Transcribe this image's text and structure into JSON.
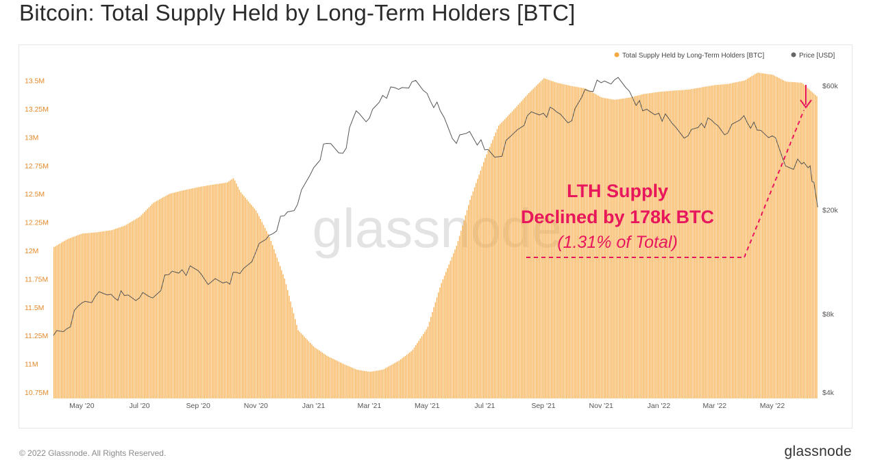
{
  "header": {
    "title": "Bitcoin: Total Supply Held by Long-Term Holders [BTC]"
  },
  "footer": {
    "copyright": "© 2022 Glassnode. All Rights Reserved.",
    "brand": "glassnode"
  },
  "watermark": "glassnode",
  "colors": {
    "supply": "#f6a942",
    "supply_fill": "#f8c27a",
    "price": "#555555",
    "annotation": "#e8175d",
    "left_axis": "#e3892a",
    "right_axis": "#555555"
  },
  "chart_data": {
    "type": "bar",
    "title": "Bitcoin: Total Supply Held by Long-Term Holders [BTC]",
    "x_ticks": [
      "May '20",
      "Jul '20",
      "Sep '20",
      "Nov '20",
      "Jan '21",
      "Mar '21",
      "May '21",
      "Jul '21",
      "Sep '21",
      "Nov '21",
      "Jan '22",
      "Mar '22",
      "May '22"
    ],
    "left_axis": {
      "ticks": [
        10.75,
        11,
        11.25,
        11.5,
        11.75,
        12,
        12.25,
        12.5,
        12.75,
        13,
        13.25,
        13.5
      ],
      "tick_labels": [
        "10.75M",
        "11M",
        "11.25M",
        "11.5M",
        "11.75M",
        "12M",
        "12.25M",
        "12.5M",
        "12.75M",
        "13M",
        "13.25M",
        "13.5M"
      ],
      "range": [
        10.72,
        13.57
      ]
    },
    "right_axis": {
      "scale": "log",
      "ticks": [
        4000,
        8000,
        20000,
        60000
      ],
      "tick_labels": [
        "$4k",
        "$8k",
        "$20k",
        "$60k"
      ]
    },
    "legend": {
      "position": "top-right",
      "items": [
        "Total Supply Held by Long-Term Holders [BTC]",
        "Price [USD]"
      ]
    },
    "series": [
      {
        "name": "Total Supply Held by Long-Term Holders [BTC]",
        "kind": "bar",
        "axis": "left",
        "x": [
          "2020-04-01",
          "2020-04-15",
          "2020-05-01",
          "2020-05-15",
          "2020-06-01",
          "2020-06-15",
          "2020-07-01",
          "2020-07-15",
          "2020-08-01",
          "2020-08-15",
          "2020-09-01",
          "2020-09-15",
          "2020-10-01",
          "2020-10-08",
          "2020-10-15",
          "2020-11-01",
          "2020-11-15",
          "2020-12-01",
          "2020-12-15",
          "2021-01-01",
          "2021-01-15",
          "2021-02-01",
          "2021-02-15",
          "2021-03-01",
          "2021-03-15",
          "2021-04-01",
          "2021-04-15",
          "2021-05-01",
          "2021-05-15",
          "2021-06-01",
          "2021-06-15",
          "2021-07-01",
          "2021-07-15",
          "2021-08-01",
          "2021-08-15",
          "2021-09-01",
          "2021-09-15",
          "2021-10-01",
          "2021-10-15",
          "2021-11-01",
          "2021-11-15",
          "2021-12-01",
          "2021-12-15",
          "2022-01-01",
          "2022-01-15",
          "2022-02-01",
          "2022-02-15",
          "2022-03-01",
          "2022-03-15",
          "2022-04-01",
          "2022-04-15",
          "2022-05-01",
          "2022-05-15",
          "2022-06-01",
          "2022-06-10",
          "2022-06-18"
        ],
        "values": [
          12.03,
          12.1,
          12.15,
          12.16,
          12.18,
          12.22,
          12.3,
          12.42,
          12.5,
          12.53,
          12.56,
          12.58,
          12.6,
          12.64,
          12.52,
          12.35,
          12.12,
          11.75,
          11.3,
          11.15,
          11.07,
          11,
          10.95,
          10.93,
          10.95,
          11.03,
          11.12,
          11.32,
          11.7,
          12.05,
          12.45,
          12.82,
          13.1,
          13.25,
          13.38,
          13.52,
          13.48,
          13.45,
          13.43,
          13.35,
          13.33,
          13.35,
          13.38,
          13.4,
          13.41,
          13.42,
          13.44,
          13.46,
          13.47,
          13.5,
          13.57,
          13.55,
          13.49,
          13.48,
          13.41,
          13.35
        ]
      },
      {
        "name": "Price [USD]",
        "kind": "line",
        "axis": "right",
        "x": [
          "2020-04-01",
          "2020-04-15",
          "2020-05-01",
          "2020-05-15",
          "2020-06-01",
          "2020-06-15",
          "2020-07-01",
          "2020-07-15",
          "2020-08-01",
          "2020-08-15",
          "2020-09-01",
          "2020-09-15",
          "2020-10-01",
          "2020-10-15",
          "2020-11-01",
          "2020-11-15",
          "2020-12-01",
          "2020-12-15",
          "2021-01-01",
          "2021-01-15",
          "2021-02-01",
          "2021-02-15",
          "2021-03-01",
          "2021-03-15",
          "2021-04-01",
          "2021-04-15",
          "2021-05-01",
          "2021-05-15",
          "2021-06-01",
          "2021-06-15",
          "2021-07-01",
          "2021-07-15",
          "2021-08-01",
          "2021-08-15",
          "2021-09-01",
          "2021-09-15",
          "2021-10-01",
          "2021-10-15",
          "2021-11-01",
          "2021-11-15",
          "2021-12-01",
          "2021-12-15",
          "2022-01-01",
          "2022-01-15",
          "2022-02-01",
          "2022-02-15",
          "2022-03-01",
          "2022-03-15",
          "2022-04-01",
          "2022-04-15",
          "2022-05-01",
          "2022-05-15",
          "2022-06-01",
          "2022-06-10",
          "2022-06-18"
        ],
        "values": [
          6600,
          7000,
          8800,
          9300,
          9500,
          9400,
          9200,
          9200,
          11300,
          11800,
          11700,
          10600,
          10600,
          11400,
          13800,
          16000,
          19000,
          21000,
          29000,
          36000,
          33000,
          48000,
          45000,
          55000,
          58000,
          62000,
          56000,
          48000,
          36000,
          40000,
          34000,
          32000,
          39500,
          46000,
          47000,
          47500,
          44000,
          58000,
          61500,
          63000,
          57000,
          48000,
          47000,
          43000,
          38500,
          43000,
          43000,
          39500,
          46000,
          40500,
          38500,
          29500,
          30000,
          29500,
          20500
        ]
      }
    ],
    "annotations": [
      {
        "line1": "LTH Supply",
        "line2": "Declined by 178k BTC",
        "line3": "(1.31% of Total)"
      }
    ]
  }
}
